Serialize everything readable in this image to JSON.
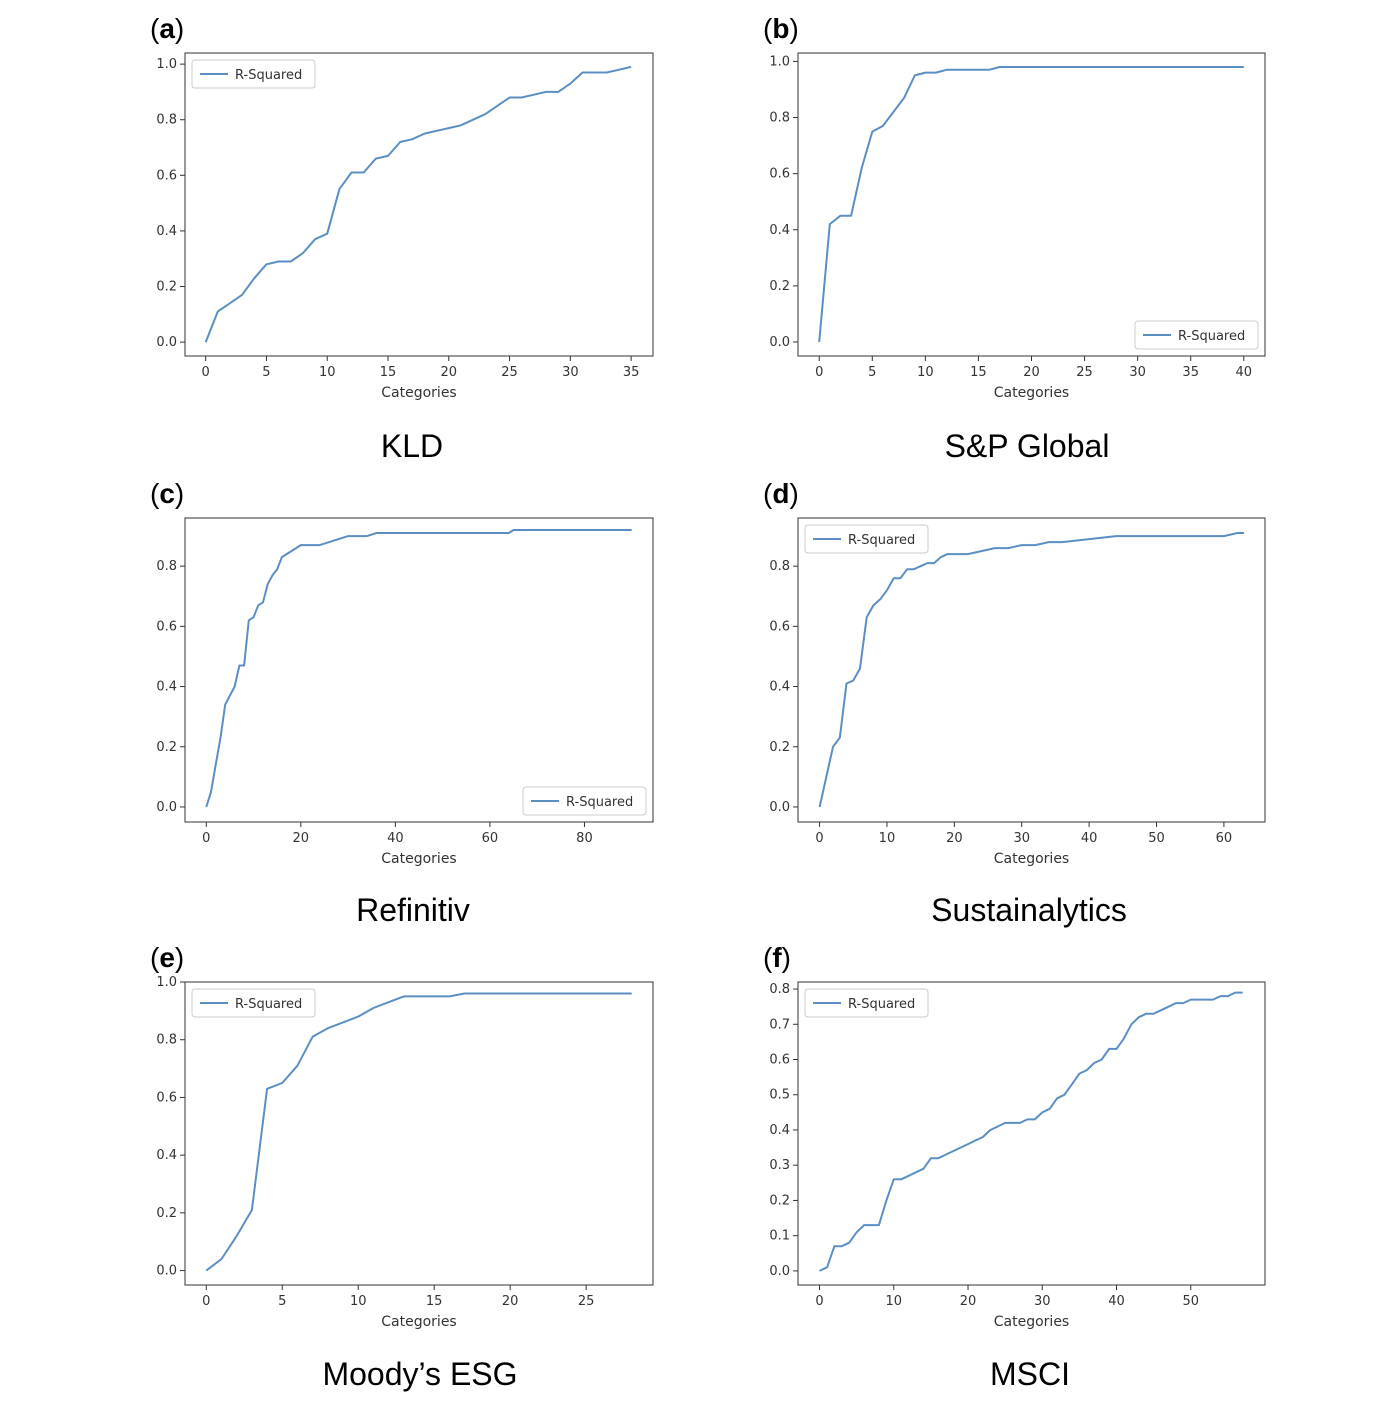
{
  "figure": {
    "line_color": "#5b8fc4",
    "panels": [
      {
        "letter": "a",
        "caption": "KLD"
      },
      {
        "letter": "b",
        "caption": "S&P Global"
      },
      {
        "letter": "c",
        "caption": "Refinitiv"
      },
      {
        "letter": "d",
        "caption": "Sustainalytics"
      },
      {
        "letter": "e",
        "caption": "Moody’s ESG"
      },
      {
        "letter": "f",
        "caption": "MSCI"
      }
    ]
  },
  "chart_data": [
    {
      "type": "line",
      "xlabel": "Categories",
      "legend": "top-left",
      "xticks": [
        0,
        5,
        10,
        15,
        20,
        25,
        30,
        35
      ],
      "yticks": [
        0.0,
        0.2,
        0.4,
        0.6,
        0.8,
        1.0
      ],
      "ytick_labels": [
        "0.0",
        "0.2",
        "0.4",
        "0.6",
        "0.8",
        "1.0"
      ],
      "xlim": [
        -1.7,
        36.8
      ],
      "ylim": [
        -0.05,
        1.04
      ],
      "series": [
        {
          "name": "R-Squared",
          "x": [
            0,
            1,
            2,
            3,
            4,
            5,
            6,
            7,
            8,
            9,
            10,
            11,
            12,
            13,
            14,
            15,
            16,
            17,
            18,
            19,
            20,
            21,
            22,
            23,
            24,
            25,
            26,
            27,
            28,
            29,
            30,
            31,
            32,
            33,
            34,
            35
          ],
          "y": [
            0.0,
            0.11,
            0.14,
            0.17,
            0.23,
            0.28,
            0.29,
            0.29,
            0.32,
            0.37,
            0.39,
            0.55,
            0.61,
            0.61,
            0.66,
            0.67,
            0.72,
            0.73,
            0.75,
            0.76,
            0.77,
            0.78,
            0.8,
            0.82,
            0.85,
            0.88,
            0.88,
            0.89,
            0.9,
            0.9,
            0.93,
            0.97,
            0.97,
            0.97,
            0.98,
            0.99
          ]
        }
      ]
    },
    {
      "type": "line",
      "xlabel": "Categories",
      "legend": "bottom-right",
      "xticks": [
        0,
        5,
        10,
        15,
        20,
        25,
        30,
        35,
        40
      ],
      "yticks": [
        0.0,
        0.2,
        0.4,
        0.6,
        0.8,
        1.0
      ],
      "ytick_labels": [
        "0.0",
        "0.2",
        "0.4",
        "0.6",
        "0.8",
        "1.0"
      ],
      "xlim": [
        -2,
        42
      ],
      "ylim": [
        -0.05,
        1.03
      ],
      "series": [
        {
          "name": "R-Squared",
          "x": [
            0,
            1,
            2,
            3,
            4,
            5,
            6,
            7,
            8,
            9,
            10,
            11,
            12,
            13,
            14,
            15,
            16,
            17,
            18,
            19,
            20,
            21,
            22,
            23,
            24,
            25,
            26,
            27,
            28,
            29,
            30,
            31,
            32,
            33,
            34,
            35,
            36,
            37,
            38,
            39,
            40
          ],
          "y": [
            0.0,
            0.42,
            0.45,
            0.45,
            0.62,
            0.75,
            0.77,
            0.82,
            0.87,
            0.95,
            0.96,
            0.96,
            0.97,
            0.97,
            0.97,
            0.97,
            0.97,
            0.98,
            0.98,
            0.98,
            0.98,
            0.98,
            0.98,
            0.98,
            0.98,
            0.98,
            0.98,
            0.98,
            0.98,
            0.98,
            0.98,
            0.98,
            0.98,
            0.98,
            0.98,
            0.98,
            0.98,
            0.98,
            0.98,
            0.98,
            0.98
          ]
        }
      ]
    },
    {
      "type": "line",
      "xlabel": "Categories",
      "legend": "bottom-right",
      "xticks": [
        0,
        20,
        40,
        60,
        80
      ],
      "yticks": [
        0.0,
        0.2,
        0.4,
        0.6,
        0.8
      ],
      "ytick_labels": [
        "0.0",
        "0.2",
        "0.4",
        "0.6",
        "0.8"
      ],
      "xlim": [
        -4.5,
        94.5
      ],
      "ylim": [
        -0.05,
        0.96
      ],
      "series": [
        {
          "name": "R-Squared",
          "x": [
            0,
            1,
            2,
            3,
            4,
            5,
            6,
            7,
            8,
            9,
            10,
            11,
            12,
            13,
            14,
            15,
            16,
            17,
            18,
            19,
            20,
            22,
            24,
            26,
            28,
            30,
            32,
            34,
            36,
            40,
            50,
            60,
            64,
            65,
            70,
            80,
            90
          ],
          "y": [
            0.0,
            0.05,
            0.14,
            0.23,
            0.34,
            0.37,
            0.4,
            0.47,
            0.47,
            0.62,
            0.63,
            0.67,
            0.68,
            0.74,
            0.77,
            0.79,
            0.83,
            0.84,
            0.85,
            0.86,
            0.87,
            0.87,
            0.87,
            0.88,
            0.89,
            0.9,
            0.9,
            0.9,
            0.91,
            0.91,
            0.91,
            0.91,
            0.91,
            0.92,
            0.92,
            0.92,
            0.92
          ]
        }
      ]
    },
    {
      "type": "line",
      "xlabel": "Categories",
      "legend": "top-left",
      "xticks": [
        0,
        10,
        20,
        30,
        40,
        50,
        60
      ],
      "yticks": [
        0.0,
        0.2,
        0.4,
        0.6,
        0.8
      ],
      "ytick_labels": [
        "0.0",
        "0.2",
        "0.4",
        "0.6",
        "0.8"
      ],
      "xlim": [
        -3.2,
        66.1
      ],
      "ylim": [
        -0.05,
        0.96
      ],
      "series": [
        {
          "name": "R-Squared",
          "x": [
            0,
            1,
            2,
            3,
            4,
            5,
            6,
            7,
            8,
            9,
            10,
            11,
            12,
            13,
            14,
            15,
            16,
            17,
            18,
            19,
            20,
            22,
            24,
            26,
            28,
            30,
            32,
            34,
            36,
            40,
            44,
            50,
            55,
            60,
            62,
            63
          ],
          "y": [
            0.0,
            0.1,
            0.2,
            0.23,
            0.41,
            0.42,
            0.46,
            0.63,
            0.67,
            0.69,
            0.72,
            0.76,
            0.76,
            0.79,
            0.79,
            0.8,
            0.81,
            0.81,
            0.83,
            0.84,
            0.84,
            0.84,
            0.85,
            0.86,
            0.86,
            0.87,
            0.87,
            0.88,
            0.88,
            0.89,
            0.9,
            0.9,
            0.9,
            0.9,
            0.91,
            0.91
          ]
        }
      ]
    },
    {
      "type": "line",
      "xlabel": "Categories",
      "legend": "top-left",
      "xticks": [
        0,
        5,
        10,
        15,
        20,
        25
      ],
      "yticks": [
        0.0,
        0.2,
        0.4,
        0.6,
        0.8,
        1.0
      ],
      "ytick_labels": [
        "0.0",
        "0.2",
        "0.4",
        "0.6",
        "0.8",
        "1.0"
      ],
      "xlim": [
        -1.4,
        29.4
      ],
      "ylim": [
        -0.05,
        1.0
      ],
      "series": [
        {
          "name": "R-Squared",
          "x": [
            0,
            1,
            2,
            3,
            4,
            5,
            6,
            7,
            8,
            9,
            10,
            11,
            12,
            13,
            14,
            15,
            16,
            17,
            18,
            19,
            20,
            21,
            22,
            23,
            24,
            25,
            26,
            27,
            28
          ],
          "y": [
            0.0,
            0.04,
            0.12,
            0.21,
            0.63,
            0.65,
            0.71,
            0.81,
            0.84,
            0.86,
            0.88,
            0.91,
            0.93,
            0.95,
            0.95,
            0.95,
            0.95,
            0.96,
            0.96,
            0.96,
            0.96,
            0.96,
            0.96,
            0.96,
            0.96,
            0.96,
            0.96,
            0.96,
            0.96
          ]
        }
      ]
    },
    {
      "type": "line",
      "xlabel": "Categories",
      "legend": "top-left",
      "xticks": [
        0,
        10,
        20,
        30,
        40,
        50
      ],
      "yticks": [
        0.0,
        0.1,
        0.2,
        0.3,
        0.4,
        0.5,
        0.6,
        0.7,
        0.8
      ],
      "ytick_labels": [
        "0.0",
        "0.1",
        "0.2",
        "0.3",
        "0.4",
        "0.5",
        "0.6",
        "0.7",
        "0.8"
      ],
      "xlim": [
        -2.9,
        60.0
      ],
      "ylim": [
        -0.04,
        0.82
      ],
      "series": [
        {
          "name": "R-Squared",
          "x": [
            0,
            1,
            2,
            3,
            4,
            5,
            6,
            7,
            8,
            9,
            10,
            11,
            12,
            13,
            14,
            15,
            16,
            17,
            18,
            19,
            20,
            21,
            22,
            23,
            24,
            25,
            26,
            27,
            28,
            29,
            30,
            31,
            32,
            33,
            34,
            35,
            36,
            37,
            38,
            39,
            40,
            41,
            42,
            43,
            44,
            45,
            46,
            47,
            48,
            49,
            50,
            51,
            52,
            53,
            54,
            55,
            56,
            57
          ],
          "y": [
            0.0,
            0.01,
            0.07,
            0.07,
            0.08,
            0.11,
            0.13,
            0.13,
            0.13,
            0.2,
            0.26,
            0.26,
            0.27,
            0.28,
            0.29,
            0.32,
            0.32,
            0.33,
            0.34,
            0.35,
            0.36,
            0.37,
            0.38,
            0.4,
            0.41,
            0.42,
            0.42,
            0.42,
            0.43,
            0.43,
            0.45,
            0.46,
            0.49,
            0.5,
            0.53,
            0.56,
            0.57,
            0.59,
            0.6,
            0.63,
            0.63,
            0.66,
            0.7,
            0.72,
            0.73,
            0.73,
            0.74,
            0.75,
            0.76,
            0.76,
            0.77,
            0.77,
            0.77,
            0.77,
            0.78,
            0.78,
            0.79,
            0.79
          ]
        }
      ]
    }
  ]
}
